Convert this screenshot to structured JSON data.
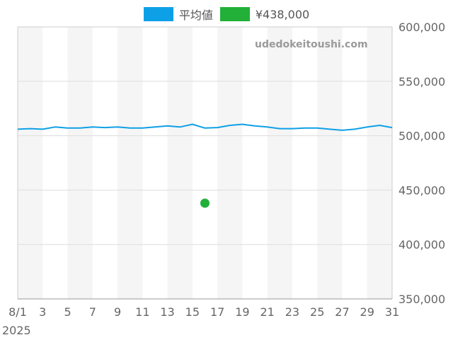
{
  "legend": {
    "items": [
      {
        "label": "平均値",
        "color": "#0ea0e6"
      },
      {
        "label": "¥438,000",
        "color": "#22b038"
      }
    ]
  },
  "watermark": "udedokeitoushi.com",
  "chart_data": {
    "type": "line",
    "x_tick_labels": [
      "8/1",
      "3",
      "5",
      "7",
      "9",
      "11",
      "13",
      "15",
      "17",
      "19",
      "21",
      "23",
      "25",
      "27",
      "29",
      "31"
    ],
    "x_tick_days": [
      1,
      3,
      5,
      7,
      9,
      11,
      13,
      15,
      17,
      19,
      21,
      23,
      25,
      27,
      29,
      31
    ],
    "x_year_label": "2025",
    "xlim": [
      1,
      31
    ],
    "y_tick_labels": [
      "600,000",
      "550,000",
      "500,000",
      "450,000",
      "400,000",
      "350,000"
    ],
    "y_tick_values": [
      600000,
      550000,
      500000,
      450000,
      400000,
      350000
    ],
    "ylim": [
      350000,
      600000
    ],
    "grid": true,
    "alternating_bands": true,
    "series": [
      {
        "name": "平均値",
        "type": "line",
        "color": "#0ea0e6",
        "x": [
          1,
          2,
          3,
          4,
          5,
          6,
          7,
          8,
          9,
          10,
          11,
          12,
          13,
          14,
          15,
          16,
          17,
          18,
          19,
          20,
          21,
          22,
          23,
          24,
          25,
          26,
          27,
          28,
          29,
          30,
          31
        ],
        "y": [
          506000,
          506500,
          506000,
          508000,
          507000,
          507000,
          508000,
          507500,
          508000,
          507000,
          507000,
          508000,
          509000,
          508000,
          510500,
          507000,
          507500,
          509500,
          510500,
          509000,
          508000,
          506500,
          506500,
          507000,
          507000,
          506000,
          505000,
          506000,
          508000,
          509500,
          507500
        ]
      },
      {
        "name": "¥438,000",
        "type": "scatter",
        "color": "#22b038",
        "x": [
          16
        ],
        "y": [
          438000
        ]
      }
    ]
  }
}
